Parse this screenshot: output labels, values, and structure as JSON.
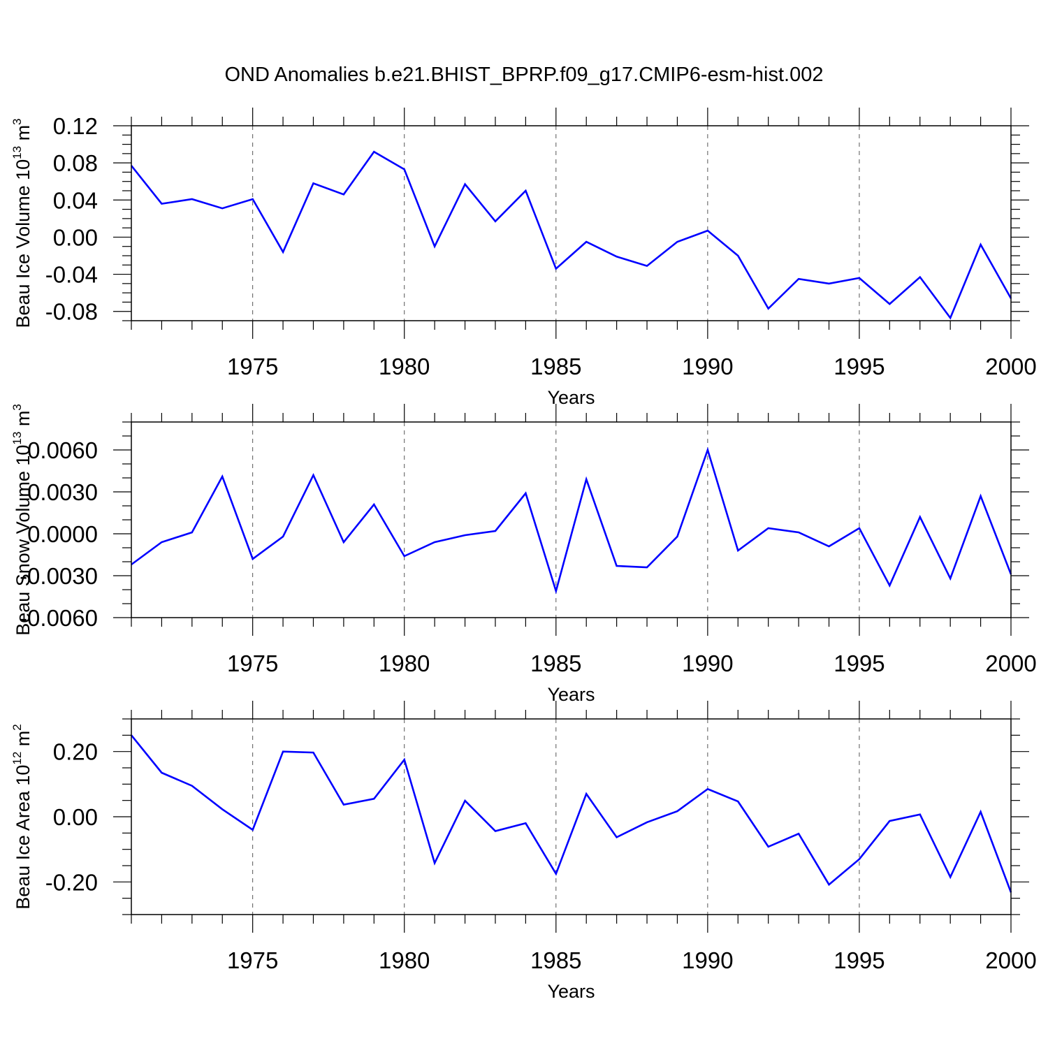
{
  "title": "OND Anomalies b.e21.BHIST_BPRP.f09_g17.CMIP6-esm-hist.002",
  "chart_data": [
    {
      "type": "line",
      "ylabel": {
        "text": "Beau Ice Volume 10",
        "sup": "13",
        "text2": " m",
        "sup2": "3"
      },
      "xlabel": "Years",
      "xlim": [
        1971,
        2000
      ],
      "ylim": [
        -0.09,
        0.12
      ],
      "yticks": [
        0.12,
        0.08,
        0.04,
        0.0,
        -0.04,
        -0.08
      ],
      "ytick_labels": [
        "0.12",
        "0.08",
        "0.04",
        "0.00",
        "-0.04",
        "-0.08"
      ],
      "yminor_step": 0.01,
      "xticks": [
        1975,
        1980,
        1985,
        1990,
        1995,
        2000
      ],
      "xtick_labels": [
        "1975",
        "1980",
        "1985",
        "1990",
        "1995",
        "2000"
      ],
      "grid_x": [
        1975,
        1980,
        1985,
        1990,
        1995
      ],
      "x": [
        1971,
        1972,
        1973,
        1974,
        1975,
        1976,
        1977,
        1978,
        1979,
        1980,
        1981,
        1982,
        1983,
        1984,
        1985,
        1986,
        1987,
        1988,
        1989,
        1990,
        1991,
        1992,
        1993,
        1994,
        1995,
        1996,
        1997,
        1998,
        1999,
        2000
      ],
      "series": [
        {
          "color": "#0000ff",
          "values": [
            0.077,
            0.036,
            0.041,
            0.031,
            0.041,
            -0.016,
            0.058,
            0.046,
            0.092,
            0.073,
            -0.01,
            0.057,
            0.017,
            0.05,
            -0.034,
            -0.005,
            -0.021,
            -0.031,
            -0.005,
            0.007,
            -0.02,
            -0.077,
            -0.045,
            -0.05,
            -0.044,
            -0.072,
            -0.043,
            -0.087,
            -0.008,
            -0.066
          ]
        }
      ]
    },
    {
      "type": "line",
      "ylabel": {
        "text": "Beau Snow Volume 10",
        "sup": "13",
        "text2": " m",
        "sup2": "3"
      },
      "xlabel": "Years",
      "xlim": [
        1971,
        2000
      ],
      "ylim": [
        -0.006,
        0.008
      ],
      "yticks": [
        0.006,
        0.003,
        0.0,
        -0.003,
        -0.006
      ],
      "ytick_labels": [
        "0.0060",
        "0.0030",
        "0.0000",
        "-0.0030",
        "-0.0060"
      ],
      "yminor_step": 0.001,
      "xticks": [
        1975,
        1980,
        1985,
        1990,
        1995,
        2000
      ],
      "xtick_labels": [
        "1975",
        "1980",
        "1985",
        "1990",
        "1995",
        "2000"
      ],
      "grid_x": [
        1975,
        1980,
        1985,
        1990,
        1995
      ],
      "x": [
        1971,
        1972,
        1973,
        1974,
        1975,
        1976,
        1977,
        1978,
        1979,
        1980,
        1981,
        1982,
        1983,
        1984,
        1985,
        1986,
        1987,
        1988,
        1989,
        1990,
        1991,
        1992,
        1993,
        1994,
        1995,
        1996,
        1997,
        1998,
        1999,
        2000
      ],
      "series": [
        {
          "color": "#0000ff",
          "values": [
            -0.0022,
            -0.0006,
            0.0001,
            0.0041,
            -0.0018,
            -0.0002,
            0.0042,
            -0.0006,
            0.0021,
            -0.0016,
            -0.0006,
            -0.0001,
            0.0002,
            0.0029,
            -0.0041,
            0.0039,
            -0.0023,
            -0.0024,
            -0.0002,
            0.006,
            -0.0012,
            0.0004,
            0.0001,
            -0.0009,
            0.0004,
            -0.0037,
            0.0012,
            -0.0032,
            0.0027,
            -0.0029
          ]
        }
      ]
    },
    {
      "type": "line",
      "ylabel": {
        "text": "Beau Ice Area 10",
        "sup": "12",
        "text2": " m",
        "sup2": "2"
      },
      "xlabel": "Years",
      "xlim": [
        1971,
        2000
      ],
      "ylim": [
        -0.3,
        0.3
      ],
      "yticks": [
        0.2,
        0.0,
        -0.2
      ],
      "ytick_labels": [
        "0.20",
        "0.00",
        "-0.20"
      ],
      "yminor_step": 0.05,
      "xticks": [
        1975,
        1980,
        1985,
        1990,
        1995,
        2000
      ],
      "xtick_labels": [
        "1975",
        "1980",
        "1985",
        "1990",
        "1995",
        "2000"
      ],
      "grid_x": [
        1975,
        1980,
        1985,
        1990,
        1995
      ],
      "x": [
        1971,
        1972,
        1973,
        1974,
        1975,
        1976,
        1977,
        1978,
        1979,
        1980,
        1981,
        1982,
        1983,
        1984,
        1985,
        1986,
        1987,
        1988,
        1989,
        1990,
        1991,
        1992,
        1993,
        1994,
        1995,
        1996,
        1997,
        1998,
        1999,
        2000
      ],
      "series": [
        {
          "color": "#0000ff",
          "values": [
            0.25,
            0.135,
            0.095,
            0.023,
            -0.04,
            0.2,
            0.197,
            0.037,
            0.055,
            0.175,
            -0.142,
            0.049,
            -0.044,
            -0.02,
            -0.175,
            0.07,
            -0.063,
            -0.017,
            0.017,
            0.085,
            0.047,
            -0.092,
            -0.052,
            -0.208,
            -0.13,
            -0.013,
            0.007,
            -0.185,
            0.015,
            -0.232
          ]
        }
      ]
    }
  ]
}
